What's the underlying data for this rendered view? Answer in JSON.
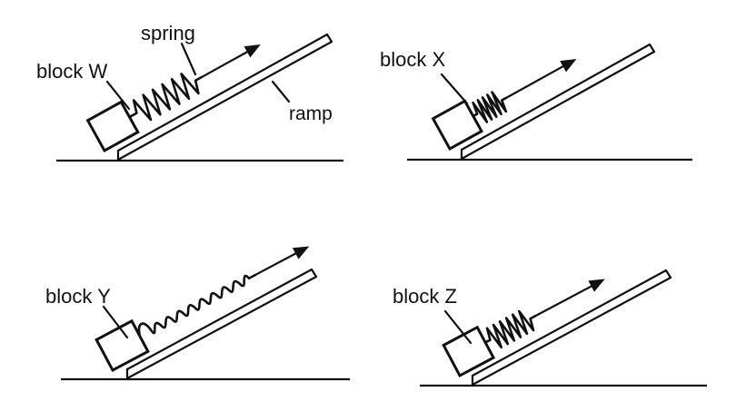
{
  "labels": {
    "spring": "spring",
    "ramp": "ramp",
    "block_w": "block W",
    "block_x": "block X",
    "block_y": "block Y",
    "block_z": "block Z"
  }
}
